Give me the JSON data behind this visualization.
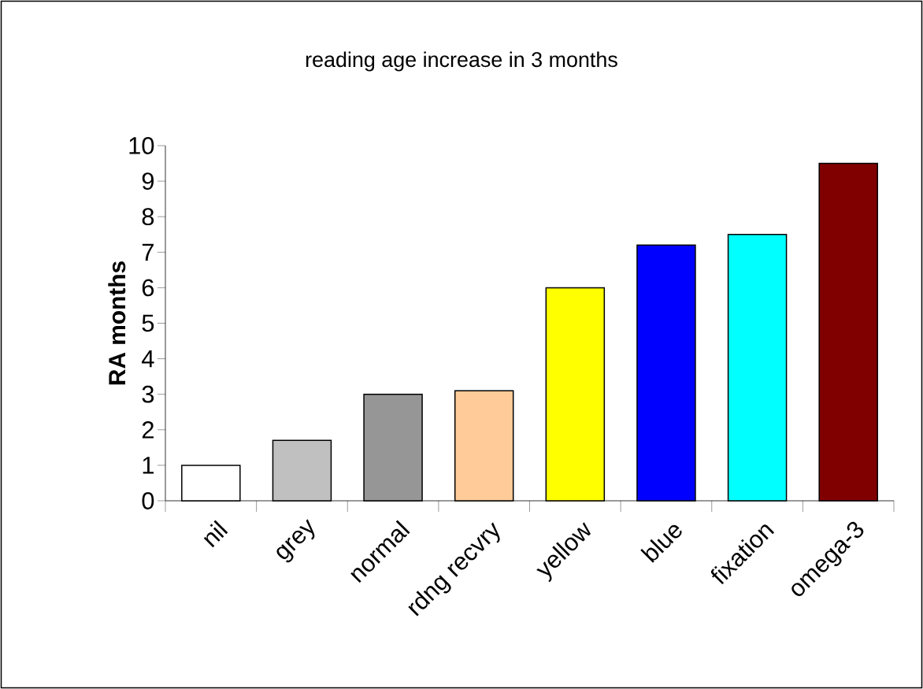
{
  "chart_data": {
    "type": "bar",
    "title": "reading age increase in 3 months",
    "ylabel": "RA months",
    "categories": [
      "nil",
      "grey",
      "normal",
      "rdng recvry",
      "yellow",
      "blue",
      "fixation",
      "omega-3"
    ],
    "values": [
      1,
      1.7,
      3,
      3.1,
      6,
      7.2,
      7.5,
      9.5
    ],
    "colors": [
      "#ffffff",
      "#c0c0c0",
      "#969696",
      "#ffcc99",
      "#ffff00",
      "#0000ff",
      "#00ffff",
      "#800000"
    ],
    "ylim": [
      0,
      10
    ],
    "yticks": [
      0,
      1,
      2,
      3,
      4,
      5,
      6,
      7,
      8,
      9,
      10
    ]
  }
}
